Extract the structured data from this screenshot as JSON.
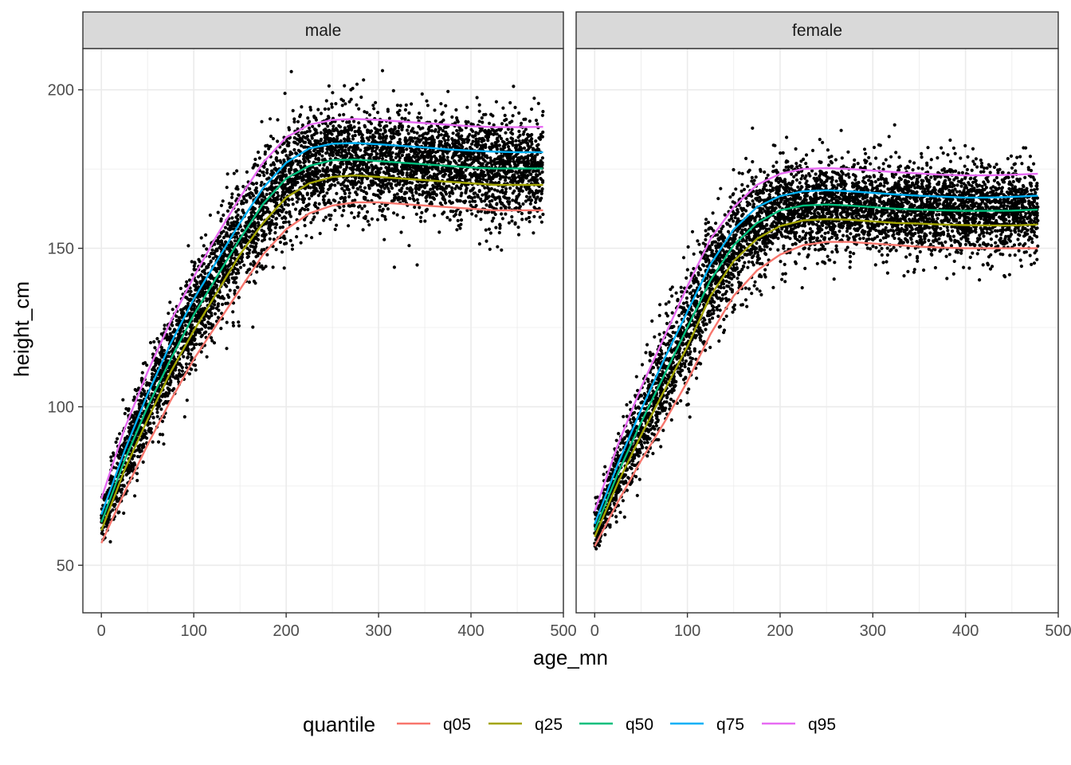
{
  "chart_data": {
    "type": "scatter",
    "xlabel": "age_mn",
    "ylabel": "height_cm",
    "xlim": [
      -20,
      500
    ],
    "ylim": [
      35,
      213
    ],
    "x_ticks": [
      0,
      100,
      200,
      300,
      400,
      500
    ],
    "y_ticks": [
      50,
      100,
      150,
      200
    ],
    "legend": {
      "title": "quantile",
      "position": "bottom",
      "entries": [
        {
          "name": "q05",
          "color": "#F8766D"
        },
        {
          "name": "q25",
          "color": "#A3A500"
        },
        {
          "name": "q50",
          "color": "#00BF7D"
        },
        {
          "name": "q75",
          "color": "#00B0F6"
        },
        {
          "name": "q95",
          "color": "#E76BF3"
        }
      ]
    },
    "point_color": "#000000",
    "grid": true,
    "panels": [
      {
        "label": "male",
        "series": [
          {
            "name": "q05",
            "x": [
              0,
              25,
              50,
              75,
              100,
              125,
              150,
              175,
              200,
              225,
              250,
              275,
              300,
              325,
              350,
              375,
              400,
              425,
              450,
              478
            ],
            "y": [
              57,
              73,
              88,
              102,
              115,
              126,
              137,
              148,
              156,
              161,
              163.5,
              164.5,
              164.5,
              164,
              163.5,
              163,
              162.5,
              162,
              162,
              162
            ]
          },
          {
            "name": "q25",
            "x": [
              0,
              25,
              50,
              75,
              100,
              125,
              150,
              175,
              200,
              225,
              250,
              275,
              300,
              325,
              350,
              375,
              400,
              425,
              450,
              478
            ],
            "y": [
              61,
              80,
              96,
              111,
              124,
              136,
              148,
              158,
              166,
              170.5,
              172.5,
              173,
              172.5,
              172,
              171.5,
              171,
              170.5,
              170,
              170,
              170
            ]
          },
          {
            "name": "q50",
            "x": [
              0,
              25,
              50,
              75,
              100,
              125,
              150,
              175,
              200,
              225,
              250,
              275,
              300,
              325,
              350,
              375,
              400,
              425,
              450,
              478
            ],
            "y": [
              63.5,
              83,
              100,
              115,
              129,
              141,
              153,
              164,
              172,
              176,
              177.8,
              178,
              177.5,
              177,
              176.5,
              176,
              175.5,
              175.2,
              175.2,
              175.2
            ]
          },
          {
            "name": "q75",
            "x": [
              0,
              25,
              50,
              75,
              100,
              125,
              150,
              175,
              200,
              225,
              250,
              275,
              300,
              325,
              350,
              375,
              400,
              425,
              450,
              478
            ],
            "y": [
              66,
              86,
              104,
              120,
              134,
              146,
              158,
              169,
              177,
              181.5,
              183,
              183.2,
              182.8,
              182.3,
              181.8,
              181.2,
              180.8,
              180.5,
              180.3,
              180.3
            ]
          },
          {
            "name": "q95",
            "x": [
              0,
              25,
              50,
              75,
              100,
              125,
              150,
              175,
              200,
              225,
              250,
              275,
              300,
              325,
              350,
              375,
              400,
              425,
              450,
              478
            ],
            "y": [
              71,
              93,
              111,
              127,
              141,
              154,
              166,
              177,
              185,
              189,
              190.5,
              190.8,
              190.5,
              190,
              189.5,
              189,
              188.5,
              188.2,
              188.2,
              188.3
            ]
          }
        ]
      },
      {
        "label": "female",
        "series": [
          {
            "name": "q05",
            "x": [
              0,
              25,
              50,
              75,
              100,
              125,
              150,
              175,
              200,
              225,
              250,
              275,
              300,
              325,
              350,
              375,
              400,
              425,
              450,
              478
            ],
            "y": [
              56,
              70,
              83,
              95,
              108,
              123,
              135,
              143,
              148,
              151,
              152,
              152,
              151.5,
              151,
              150.5,
              150.2,
              150,
              150,
              150,
              150
            ]
          },
          {
            "name": "q25",
            "x": [
              0,
              25,
              50,
              75,
              100,
              125,
              150,
              175,
              200,
              225,
              250,
              275,
              300,
              325,
              350,
              375,
              400,
              425,
              450,
              478
            ],
            "y": [
              59,
              76,
              91,
              105,
              119,
              135,
              146,
              153,
              157,
              158.8,
              159.2,
              159,
              158.5,
              158,
              157.8,
              157.5,
              157.3,
              157.2,
              157.2,
              157.5
            ]
          },
          {
            "name": "q50",
            "x": [
              0,
              25,
              50,
              75,
              100,
              125,
              150,
              175,
              200,
              225,
              250,
              275,
              300,
              325,
              350,
              375,
              400,
              425,
              450,
              478
            ],
            "y": [
              61,
              79,
              95,
              110,
              125,
              140,
              151,
              158,
              162,
              163.5,
              163.8,
              163.5,
              163,
              162.5,
              162.2,
              162,
              161.8,
              161.8,
              161.9,
              162.2
            ]
          },
          {
            "name": "q75",
            "x": [
              0,
              25,
              50,
              75,
              100,
              125,
              150,
              175,
              200,
              225,
              250,
              275,
              300,
              325,
              350,
              375,
              400,
              425,
              450,
              478
            ],
            "y": [
              63,
              82,
              99,
              115,
              130,
              145,
              156,
              163,
              166.5,
              168,
              168.3,
              168,
              167.5,
              167,
              166.6,
              166.3,
              166,
              166,
              166.2,
              166.6
            ]
          },
          {
            "name": "q95",
            "x": [
              0,
              25,
              50,
              75,
              100,
              125,
              150,
              175,
              200,
              225,
              250,
              275,
              300,
              325,
              350,
              375,
              400,
              425,
              450,
              478
            ],
            "y": [
              67,
              88,
              106,
              122,
              138,
              153,
              163,
              170,
              173.5,
              175,
              175.3,
              175,
              174.5,
              174,
              173.6,
              173.2,
              173,
              173,
              173.2,
              173.5
            ]
          }
        ]
      }
    ]
  }
}
